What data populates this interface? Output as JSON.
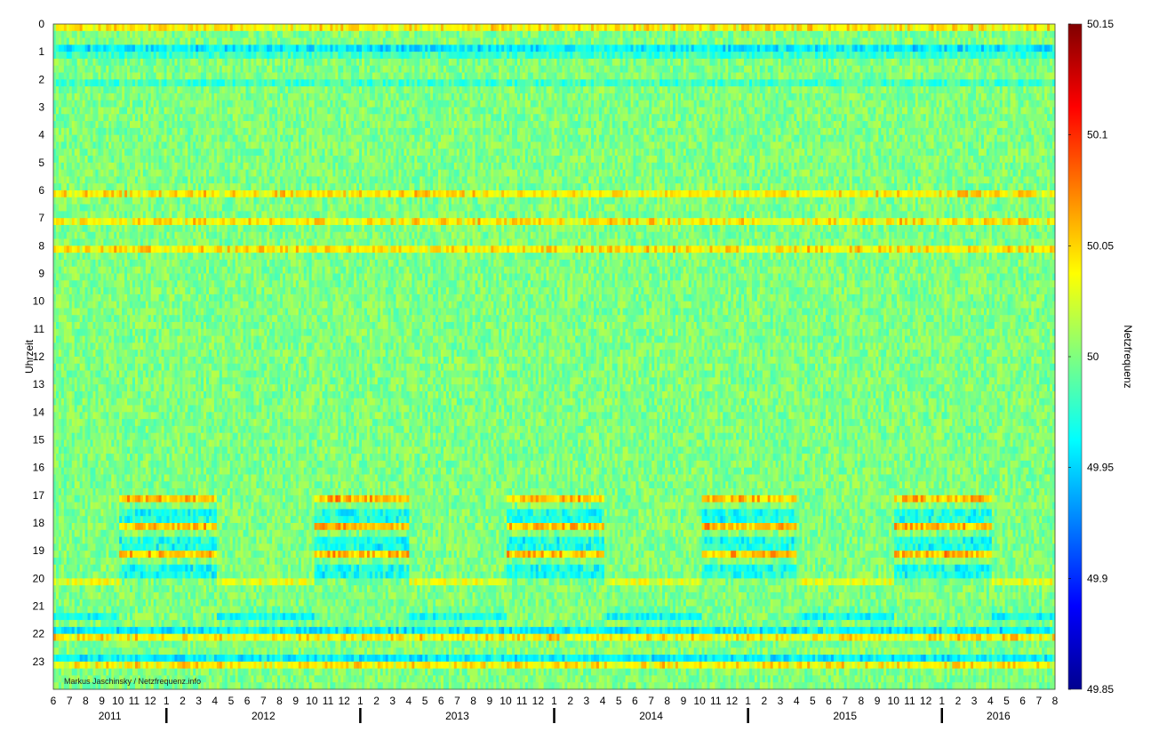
{
  "chart_data": {
    "type": "heatmap",
    "title": "",
    "ylabel": "Uhrzeit",
    "colorbar_label": "Netzfrequenz",
    "credit": "Markus Jaschinsky / Netzfrequenz.info",
    "ylim": [
      0,
      24
    ],
    "y_ticks": [
      "0",
      "1",
      "2",
      "3",
      "4",
      "5",
      "6",
      "7",
      "8",
      "9",
      "10",
      "11",
      "12",
      "13",
      "14",
      "15",
      "16",
      "17",
      "18",
      "19",
      "20",
      "21",
      "22",
      "23"
    ],
    "x_month_ticks": [
      "6",
      "7",
      "8",
      "9",
      "10",
      "11",
      "12",
      "1",
      "2",
      "3",
      "4",
      "5",
      "6",
      "7",
      "8",
      "9",
      "10",
      "11",
      "12",
      "1",
      "2",
      "3",
      "4",
      "5",
      "6",
      "7",
      "8",
      "9",
      "10",
      "11",
      "12",
      "1",
      "2",
      "3",
      "4",
      "5",
      "6",
      "7",
      "8",
      "9",
      "10",
      "11",
      "12",
      "1",
      "2",
      "3",
      "4",
      "5",
      "6",
      "7",
      "8",
      "9",
      "10",
      "11",
      "12",
      "1",
      "2",
      "3",
      "4",
      "5",
      "6",
      "7",
      "8"
    ],
    "x_years": [
      "2011",
      "2012",
      "2013",
      "2014",
      "2015",
      "2016"
    ],
    "color_range": [
      49.85,
      50.15
    ],
    "colorbar_ticks": [
      "49.85",
      "49.9",
      "49.95",
      "50",
      "50.05",
      "50.1",
      "50.15"
    ],
    "colormap": "jet",
    "hour_boundary_pattern": {
      "high_frequency_hours": [
        0,
        1,
        6,
        7,
        8,
        22,
        23
      ],
      "low_frequency_hours": [
        1,
        2,
        21,
        22,
        23
      ]
    },
    "seasonal_features": {
      "winter_evening_peaks_hours": [
        17,
        18,
        19
      ],
      "summer_evening_dip_hours": [
        20,
        21
      ]
    }
  }
}
